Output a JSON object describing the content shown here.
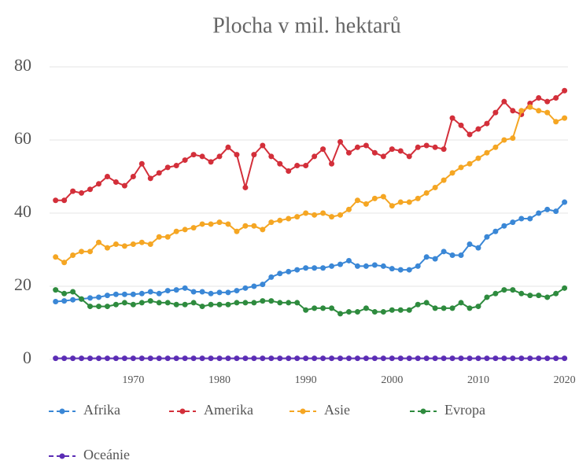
{
  "chart_data": {
    "type": "line",
    "title": "Plocha v mil. hektarů",
    "x": [
      1961,
      1962,
      1963,
      1964,
      1965,
      1966,
      1967,
      1968,
      1969,
      1970,
      1971,
      1972,
      1973,
      1974,
      1975,
      1976,
      1977,
      1978,
      1979,
      1980,
      1981,
      1982,
      1983,
      1984,
      1985,
      1986,
      1987,
      1988,
      1989,
      1990,
      1991,
      1992,
      1993,
      1994,
      1995,
      1996,
      1997,
      1998,
      1999,
      2000,
      2001,
      2002,
      2003,
      2004,
      2005,
      2006,
      2007,
      2008,
      2009,
      2010,
      2011,
      2012,
      2013,
      2014,
      2015,
      2016,
      2017,
      2018,
      2019,
      2020
    ],
    "xlim": [
      1960.3,
      2020.4
    ],
    "xticks": [
      1970,
      1980,
      1990,
      2000,
      2010,
      2020
    ],
    "ylim": [
      0,
      80
    ],
    "yticks": [
      0,
      20,
      40,
      60,
      80
    ],
    "grid": true,
    "series": [
      {
        "name": "Afrika",
        "color": "#3a87d6",
        "values": [
          15.8,
          16,
          16.3,
          16.5,
          16.8,
          17,
          17.5,
          17.8,
          17.8,
          17.8,
          18,
          18.5,
          18,
          18.8,
          19,
          19.5,
          18.5,
          18.5,
          18,
          18.3,
          18.3,
          18.8,
          19.5,
          20,
          20.5,
          22.5,
          23.5,
          24,
          24.5,
          25,
          25,
          25,
          25.5,
          26,
          27,
          25.5,
          25.5,
          25.8,
          25.5,
          24.8,
          24.5,
          24.5,
          25.5,
          28,
          27.5,
          29.5,
          28.5,
          28.5,
          31.5,
          30.5,
          33.5,
          35,
          36.5,
          37.5,
          38.5,
          38.5,
          40,
          41,
          40.5,
          43
        ]
      },
      {
        "name": "Amerika",
        "color": "#d32f3a",
        "values": [
          43.5,
          43.5,
          46,
          45.5,
          46.5,
          48,
          50,
          48.5,
          47.5,
          50,
          53.5,
          49.5,
          51,
          52.5,
          53,
          54.5,
          56,
          55.5,
          54,
          55.5,
          58,
          56,
          47,
          56,
          58.5,
          55.5,
          53.5,
          51.5,
          53,
          53,
          55.5,
          57.5,
          53.5,
          59.5,
          56.5,
          58,
          58.5,
          56.5,
          55.5,
          57.5,
          57,
          55.5,
          58,
          58.5,
          58,
          57.5,
          66,
          64,
          61.5,
          63,
          64.5,
          67.5,
          70.5,
          68,
          67,
          70,
          71.5,
          70.5,
          71.5,
          73.5
        ]
      },
      {
        "name": "Asie",
        "color": "#f5a623",
        "values": [
          28,
          26.5,
          28.5,
          29.5,
          29.5,
          32,
          30.5,
          31.5,
          31,
          31.5,
          32,
          31.5,
          33.5,
          33.5,
          35,
          35.5,
          36,
          37,
          37,
          37.5,
          37,
          35,
          36.5,
          36.5,
          35.5,
          37.5,
          38,
          38.5,
          39,
          40,
          39.5,
          40,
          39,
          39.5,
          41,
          43.5,
          42.5,
          44,
          44.5,
          42,
          43,
          43,
          44,
          45.5,
          47,
          49,
          51,
          52.5,
          53.5,
          55,
          56.5,
          58,
          60,
          60.5,
          68,
          69,
          68,
          67.5,
          65,
          66
        ]
      },
      {
        "name": "Evropa",
        "color": "#2e8b3e",
        "values": [
          19,
          18,
          18.5,
          16.5,
          14.5,
          14.5,
          14.5,
          15,
          15.5,
          15,
          15.5,
          16,
          15.5,
          15.5,
          15,
          15,
          15.5,
          14.5,
          15,
          15,
          15,
          15.5,
          15.5,
          15.5,
          16,
          16,
          15.5,
          15.5,
          15.5,
          13.5,
          14,
          14,
          14,
          12.5,
          13,
          13,
          14,
          13,
          13,
          13.5,
          13.5,
          13.5,
          15,
          15.5,
          14,
          14,
          14,
          15.5,
          14,
          14.5,
          17,
          18,
          19,
          19,
          18,
          17.5,
          17.5,
          17,
          18,
          19.5
        ]
      },
      {
        "name": "Oceánie",
        "color": "#5b2db5",
        "values": [
          0.3,
          0.3,
          0.3,
          0.3,
          0.3,
          0.3,
          0.3,
          0.3,
          0.3,
          0.3,
          0.3,
          0.3,
          0.3,
          0.3,
          0.3,
          0.3,
          0.3,
          0.3,
          0.3,
          0.3,
          0.3,
          0.3,
          0.3,
          0.3,
          0.3,
          0.3,
          0.3,
          0.3,
          0.3,
          0.3,
          0.3,
          0.3,
          0.3,
          0.3,
          0.3,
          0.3,
          0.3,
          0.3,
          0.3,
          0.3,
          0.3,
          0.3,
          0.3,
          0.3,
          0.3,
          0.3,
          0.3,
          0.3,
          0.3,
          0.3,
          0.3,
          0.3,
          0.3,
          0.3,
          0.3,
          0.3,
          0.3,
          0.3,
          0.3,
          0.3
        ]
      }
    ]
  }
}
